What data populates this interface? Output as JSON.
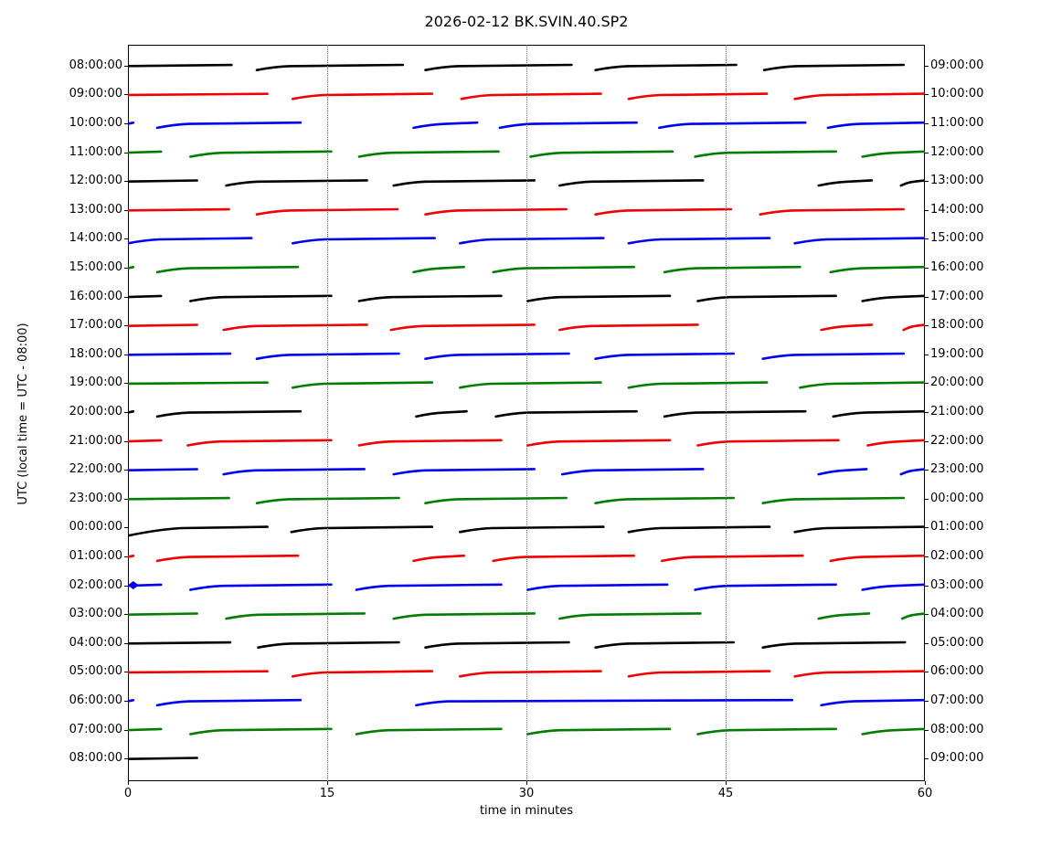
{
  "title": "2026-02-12 BK.SVIN.40.SP2",
  "chart_data": {
    "type": "line",
    "variant": "helicorder-dayplot",
    "title": "2026-02-12 BK.SVIN.40.SP2",
    "xlabel": "time in minutes",
    "ylabel": "UTC (local time = UTC - 08:00)",
    "xlim": [
      0,
      60
    ],
    "xticks": [
      0,
      15,
      30,
      45,
      60
    ],
    "grid": {
      "vertical_dotted_at": [
        15,
        30,
        45
      ]
    },
    "minutes_per_row": 60,
    "color_cycle": {
      "k": "#000000",
      "r": "#f00000",
      "b": "#0000f0",
      "g": "#007d00"
    },
    "start_marker": {
      "shape": "diamond",
      "color": "b",
      "row_index": 18,
      "x_min": 0.4
    },
    "rows": [
      {
        "utc_left": "08:00:00",
        "local_right": "09:00:00",
        "color": "k",
        "segments_min": [
          [
            0,
            7.8,
            0
          ],
          [
            9.7,
            20.7,
            1
          ],
          [
            22.4,
            33.4,
            1
          ],
          [
            35.2,
            45.8,
            1
          ],
          [
            47.9,
            58.4,
            1
          ]
        ]
      },
      {
        "utc_left": "09:00:00",
        "local_right": "10:00:00",
        "color": "r",
        "segments_min": [
          [
            0,
            10.5,
            0
          ],
          [
            12.4,
            22.9,
            1
          ],
          [
            25.1,
            35.6,
            1
          ],
          [
            37.7,
            48.1,
            1
          ],
          [
            50.2,
            59.9,
            1
          ]
        ]
      },
      {
        "utc_left": "10:00:00",
        "local_right": "11:00:00",
        "color": "b",
        "segments_min": [
          [
            0,
            0.4,
            0
          ],
          [
            2.2,
            13.0,
            1
          ],
          [
            21.5,
            26.3,
            1
          ],
          [
            28.0,
            38.3,
            1
          ],
          [
            40.0,
            51.0,
            1
          ],
          [
            52.7,
            60,
            1
          ]
        ]
      },
      {
        "utc_left": "11:00:00",
        "local_right": "12:00:00",
        "color": "g",
        "segments_min": [
          [
            0,
            2.5,
            0
          ],
          [
            4.7,
            15.3,
            1
          ],
          [
            17.4,
            27.9,
            1
          ],
          [
            30.3,
            41.0,
            1
          ],
          [
            42.7,
            53.3,
            1
          ],
          [
            55.3,
            60,
            1
          ]
        ]
      },
      {
        "utc_left": "12:00:00",
        "local_right": "13:00:00",
        "color": "k",
        "segments_min": [
          [
            0,
            5.2,
            0
          ],
          [
            7.4,
            18.0,
            1
          ],
          [
            20.0,
            30.6,
            1
          ],
          [
            32.5,
            43.3,
            1
          ],
          [
            52.0,
            56.0,
            1
          ],
          [
            58.2,
            60,
            1
          ]
        ]
      },
      {
        "utc_left": "13:00:00",
        "local_right": "14:00:00",
        "color": "r",
        "segments_min": [
          [
            0,
            7.6,
            0
          ],
          [
            9.7,
            20.3,
            1
          ],
          [
            22.4,
            33.0,
            1
          ],
          [
            35.2,
            45.4,
            1
          ],
          [
            47.6,
            58.4,
            1
          ]
        ]
      },
      {
        "utc_left": "14:00:00",
        "local_right": "15:00:00",
        "color": "b",
        "segments_min": [
          [
            0,
            9.3,
            1
          ],
          [
            12.4,
            23.1,
            1
          ],
          [
            25.0,
            35.8,
            1
          ],
          [
            37.7,
            48.3,
            1
          ],
          [
            50.2,
            60,
            1
          ]
        ]
      },
      {
        "utc_left": "15:00:00",
        "local_right": "16:00:00",
        "color": "g",
        "segments_min": [
          [
            0,
            0.4,
            0
          ],
          [
            2.2,
            12.8,
            1
          ],
          [
            21.5,
            25.3,
            1
          ],
          [
            27.5,
            38.1,
            1
          ],
          [
            40.4,
            50.6,
            1
          ],
          [
            52.9,
            60,
            1
          ]
        ]
      },
      {
        "utc_left": "16:00:00",
        "local_right": "17:00:00",
        "color": "k",
        "segments_min": [
          [
            0,
            2.5,
            0
          ],
          [
            4.7,
            15.3,
            1
          ],
          [
            17.4,
            28.1,
            1
          ],
          [
            30.1,
            40.8,
            1
          ],
          [
            42.9,
            53.3,
            1
          ],
          [
            55.3,
            60,
            1
          ]
        ]
      },
      {
        "utc_left": "17:00:00",
        "local_right": "18:00:00",
        "color": "r",
        "segments_min": [
          [
            0,
            5.2,
            0
          ],
          [
            7.2,
            18.0,
            1
          ],
          [
            19.8,
            30.6,
            1
          ],
          [
            32.5,
            42.9,
            1
          ],
          [
            52.2,
            56.0,
            1
          ],
          [
            58.4,
            60,
            1
          ]
        ]
      },
      {
        "utc_left": "18:00:00",
        "local_right": "19:00:00",
        "color": "b",
        "segments_min": [
          [
            0,
            7.7,
            0
          ],
          [
            9.7,
            20.4,
            1
          ],
          [
            22.4,
            33.2,
            1
          ],
          [
            35.2,
            45.6,
            1
          ],
          [
            47.8,
            58.4,
            1
          ]
        ]
      },
      {
        "utc_left": "19:00:00",
        "local_right": "20:00:00",
        "color": "g",
        "segments_min": [
          [
            0,
            10.5,
            0
          ],
          [
            12.4,
            22.9,
            1
          ],
          [
            25.0,
            35.6,
            1
          ],
          [
            37.7,
            48.1,
            1
          ],
          [
            50.6,
            60,
            1
          ]
        ]
      },
      {
        "utc_left": "20:00:00",
        "local_right": "21:00:00",
        "color": "k",
        "segments_min": [
          [
            0,
            0.4,
            0
          ],
          [
            2.2,
            13.0,
            1
          ],
          [
            21.7,
            25.5,
            1
          ],
          [
            27.7,
            38.3,
            1
          ],
          [
            40.4,
            51.0,
            1
          ],
          [
            53.1,
            60,
            1
          ]
        ]
      },
      {
        "utc_left": "21:00:00",
        "local_right": "22:00:00",
        "color": "r",
        "segments_min": [
          [
            0,
            2.5,
            0
          ],
          [
            4.5,
            15.3,
            1
          ],
          [
            17.4,
            28.1,
            1
          ],
          [
            30.1,
            40.8,
            1
          ],
          [
            42.9,
            53.5,
            1
          ],
          [
            55.7,
            60,
            1
          ]
        ]
      },
      {
        "utc_left": "22:00:00",
        "local_right": "23:00:00",
        "color": "b",
        "segments_min": [
          [
            0,
            5.2,
            0
          ],
          [
            7.2,
            17.8,
            1
          ],
          [
            20.0,
            30.6,
            1
          ],
          [
            32.7,
            43.3,
            1
          ],
          [
            52.0,
            55.6,
            1
          ],
          [
            58.2,
            60,
            1
          ]
        ]
      },
      {
        "utc_left": "23:00:00",
        "local_right": "00:00:00",
        "color": "g",
        "segments_min": [
          [
            0,
            7.6,
            0
          ],
          [
            9.7,
            20.4,
            1
          ],
          [
            22.4,
            33.0,
            1
          ],
          [
            35.2,
            45.6,
            1
          ],
          [
            47.8,
            58.4,
            1
          ]
        ]
      },
      {
        "utc_left": "00:00:00",
        "local_right": "01:00:00",
        "color": "k",
        "segments_min": [
          [
            0,
            10.5,
            2
          ],
          [
            12.3,
            22.9,
            1
          ],
          [
            25.0,
            35.8,
            1
          ],
          [
            37.7,
            48.3,
            1
          ],
          [
            50.2,
            60,
            1
          ]
        ]
      },
      {
        "utc_left": "01:00:00",
        "local_right": "02:00:00",
        "color": "r",
        "segments_min": [
          [
            0,
            0.4,
            0
          ],
          [
            2.2,
            12.8,
            1
          ],
          [
            21.5,
            25.3,
            1
          ],
          [
            27.5,
            38.1,
            1
          ],
          [
            40.2,
            50.8,
            1
          ],
          [
            52.9,
            60,
            1
          ]
        ]
      },
      {
        "utc_left": "02:00:00",
        "local_right": "03:00:00",
        "color": "b",
        "segments_min": [
          [
            0,
            2.5,
            0
          ],
          [
            4.7,
            15.3,
            1
          ],
          [
            17.2,
            28.1,
            1
          ],
          [
            30.1,
            40.6,
            1
          ],
          [
            42.7,
            53.3,
            1
          ],
          [
            55.3,
            60,
            1
          ]
        ]
      },
      {
        "utc_left": "03:00:00",
        "local_right": "04:00:00",
        "color": "g",
        "segments_min": [
          [
            0,
            5.2,
            0
          ],
          [
            7.4,
            17.8,
            1
          ],
          [
            20.0,
            30.6,
            1
          ],
          [
            32.5,
            43.1,
            1
          ],
          [
            52.0,
            55.8,
            1
          ],
          [
            58.3,
            60,
            1
          ]
        ]
      },
      {
        "utc_left": "04:00:00",
        "local_right": "05:00:00",
        "color": "k",
        "segments_min": [
          [
            0,
            7.7,
            0
          ],
          [
            9.8,
            20.4,
            1
          ],
          [
            22.4,
            33.2,
            1
          ],
          [
            35.2,
            45.6,
            1
          ],
          [
            47.8,
            58.5,
            1
          ]
        ]
      },
      {
        "utc_left": "05:00:00",
        "local_right": "06:00:00",
        "color": "r",
        "segments_min": [
          [
            0,
            10.5,
            0
          ],
          [
            12.4,
            22.9,
            1
          ],
          [
            25.0,
            35.6,
            1
          ],
          [
            37.7,
            48.3,
            1
          ],
          [
            50.2,
            60,
            1
          ]
        ]
      },
      {
        "utc_left": "06:00:00",
        "local_right": "07:00:00",
        "color": "b",
        "segments_min": [
          [
            0,
            0.4,
            0
          ],
          [
            2.2,
            13.0,
            1
          ],
          [
            21.7,
            50.0,
            1
          ],
          [
            52.2,
            60,
            1
          ]
        ]
      },
      {
        "utc_left": "07:00:00",
        "local_right": "08:00:00",
        "color": "g",
        "segments_min": [
          [
            0,
            2.5,
            0
          ],
          [
            4.7,
            15.3,
            1
          ],
          [
            17.2,
            28.1,
            1
          ],
          [
            30.1,
            40.8,
            1
          ],
          [
            42.9,
            53.3,
            1
          ],
          [
            55.3,
            60,
            1
          ]
        ]
      },
      {
        "utc_left": "08:00:00",
        "local_right": "09:00:00",
        "color": "k",
        "segments_min": [
          [
            0,
            5.2,
            0
          ]
        ]
      }
    ]
  }
}
